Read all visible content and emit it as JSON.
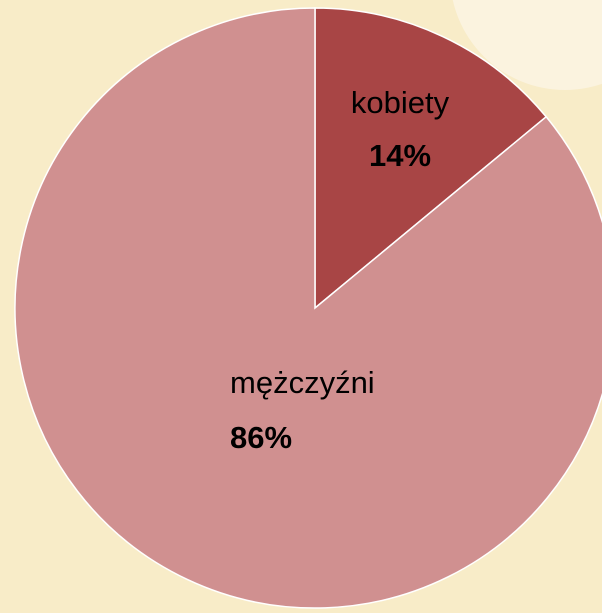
{
  "chart_data": {
    "type": "pie",
    "categories": [
      "kobiety",
      "mężczyźni"
    ],
    "values": [
      14,
      86
    ],
    "value_labels": [
      "14%",
      "86%"
    ],
    "colors": [
      "#a84545",
      "#d09090"
    ]
  }
}
